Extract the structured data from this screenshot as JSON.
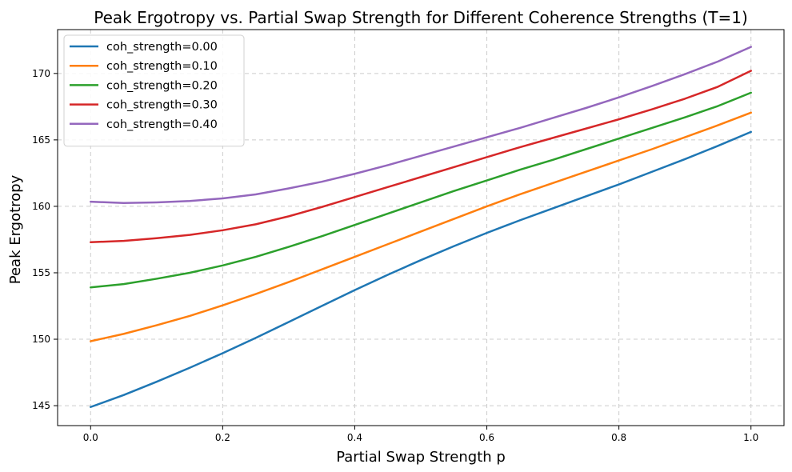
{
  "chart_data": {
    "type": "line",
    "title": "Peak Ergotropy vs. Partial Swap Strength for Different Coherence Strengths (T=1)",
    "xlabel": "Partial Swap Strength p",
    "ylabel": "Peak Ergotropy",
    "xlim": [
      -0.05,
      1.05
    ],
    "ylim": [
      143.5,
      173.3
    ],
    "xticks": [
      0.0,
      0.2,
      0.4,
      0.6,
      0.8,
      1.0
    ],
    "xtick_labels": [
      "0.0",
      "0.2",
      "0.4",
      "0.6",
      "0.8",
      "1.0"
    ],
    "yticks": [
      145,
      150,
      155,
      160,
      165,
      170
    ],
    "ytick_labels": [
      "145",
      "150",
      "155",
      "160",
      "165",
      "170"
    ],
    "grid": true,
    "legend_position": "top-left",
    "x": [
      0.0,
      0.05,
      0.1,
      0.15,
      0.2,
      0.25,
      0.3,
      0.35,
      0.4,
      0.45,
      0.5,
      0.55,
      0.6,
      0.65,
      0.7,
      0.75,
      0.8,
      0.85,
      0.9,
      0.95,
      1.0
    ],
    "series": [
      {
        "name": "coh_strength=0.00",
        "color": "#1f77b4",
        "values": [
          144.9,
          145.8,
          146.8,
          147.85,
          148.95,
          150.1,
          151.3,
          152.5,
          153.7,
          154.85,
          155.95,
          157.0,
          158.0,
          158.95,
          159.85,
          160.75,
          161.65,
          162.6,
          163.55,
          164.55,
          165.6
        ]
      },
      {
        "name": "coh_strength=0.10",
        "color": "#ff7f0e",
        "values": [
          149.85,
          150.4,
          151.05,
          151.75,
          152.55,
          153.4,
          154.3,
          155.25,
          156.2,
          157.15,
          158.1,
          159.05,
          160.0,
          160.9,
          161.75,
          162.6,
          163.45,
          164.3,
          165.2,
          166.1,
          167.05
        ]
      },
      {
        "name": "coh_strength=0.20",
        "color": "#2ca02c",
        "values": [
          153.9,
          154.15,
          154.55,
          155.0,
          155.55,
          156.2,
          156.95,
          157.75,
          158.6,
          159.45,
          160.3,
          161.15,
          161.95,
          162.75,
          163.5,
          164.3,
          165.1,
          165.9,
          166.7,
          167.55,
          168.55
        ]
      },
      {
        "name": "coh_strength=0.30",
        "color": "#d62728",
        "values": [
          157.3,
          157.4,
          157.6,
          157.85,
          158.2,
          158.65,
          159.25,
          159.95,
          160.7,
          161.45,
          162.2,
          162.95,
          163.7,
          164.45,
          165.15,
          165.85,
          166.55,
          167.3,
          168.1,
          169.0,
          170.2
        ]
      },
      {
        "name": "coh_strength=0.40",
        "color": "#9467bd",
        "values": [
          160.35,
          160.25,
          160.3,
          160.4,
          160.6,
          160.9,
          161.35,
          161.85,
          162.45,
          163.1,
          163.8,
          164.5,
          165.2,
          165.9,
          166.65,
          167.4,
          168.2,
          169.05,
          169.95,
          170.9,
          172.0
        ]
      }
    ]
  }
}
